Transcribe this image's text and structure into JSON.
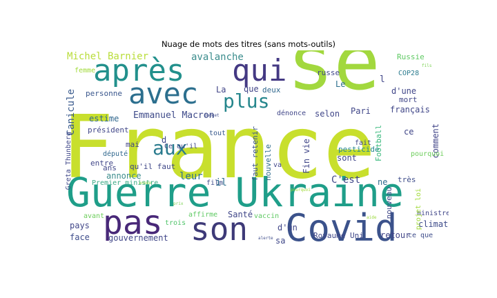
{
  "title": "Nuage de mots des titres (sans mots-outils)",
  "words": {
    "france": "France",
    "se": "se",
    "guerre_ukraine": "Guerre Ukraine",
    "covid": "Covid",
    "son": "son",
    "pas": "pas",
    "apres": "après",
    "qui": "qui",
    "avec": "avec",
    "plus": "plus",
    "aux": "aux",
    "michel_barnier": "Michel Barnier",
    "avalanche": "avalanche",
    "emmanuel_macron": "Emmanuel Macron",
    "canicule": "Canicule",
    "personne": "personne",
    "estime": "estime",
    "president": "président",
    "mai": "mai",
    "depute": "député",
    "entre": "entre",
    "ans": "ans",
    "annonce": "annonce",
    "premier_ministre": "Premier ministre",
    "greta_thunberg": "Greta Thunberg",
    "pays": "pays",
    "face": "face",
    "gouvernement": "gouvernement",
    "affirme": "affirme",
    "trois": "trois",
    "sante": "Santé",
    "il": "il",
    "leur": "leur",
    "quil_faut": "qu'il faut",
    "ce_quil": "Ce qu'il",
    "d": "d",
    "la": "La",
    "que": "que",
    "deux": "deux",
    "selon": "selon",
    "denonce": "dénonce",
    "tout": "tout",
    "faut_retenir": "faut retenir",
    "nouvelle": "nouvelle",
    "fin_vie": "Fin vie",
    "cest": "C'est",
    "royaume_uni": "Royaume Uni",
    "retour": "retour",
    "ne": "ne",
    "tres": "très",
    "nouveau": "nouveau",
    "climat": "climat",
    "ministre": "ministre",
    "ce_que": "ce que",
    "dun": "d'un",
    "vaccin": "vaccin",
    "sa": "sa",
    "pesticide": "pesticide",
    "sont": "sont",
    "football": "Football",
    "comment": "comment",
    "pourquoi": "pourquoi",
    "projet_loi": "projet loi",
    "ce": "ce",
    "francais": "français",
    "mort": "mort",
    "dune": "d'une",
    "fait": "fait",
    "le": "Le",
    "russie": "Russie",
    "cop28": "COP28",
    "russe": "russe",
    "paris": "Pari",
    "l": "l",
    "femme": "femme",
    "va": "va",
    "film": "film",
    "annee": "année",
    "avant": "avant",
    "fils": "fils",
    "budget": "Budget",
    "pourquoi2": "pourquoi",
    "alerte": "alerte",
    "aide": "aide",
    "prix": "prix"
  }
}
